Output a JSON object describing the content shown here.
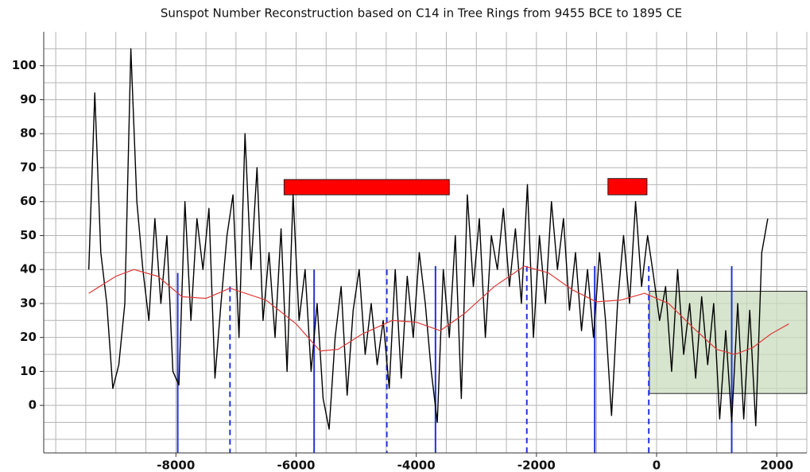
{
  "chart_data": {
    "type": "line",
    "title": "Sunspot Number Reconstruction based on C14 in Tree Rings from 9455 BCE to 1895 CE",
    "xlim": [
      -10200,
      2500
    ],
    "ylim": [
      -14,
      110
    ],
    "xticks": [
      -8000,
      -6000,
      -4000,
      -2000,
      0,
      2000
    ],
    "yticks": [
      0,
      10,
      20,
      30,
      40,
      50,
      60,
      70,
      80,
      90,
      100
    ],
    "x_minor_ticks": [
      -10000,
      -9500,
      -9000,
      -8500,
      -8000,
      -7500,
      -7000,
      -6500,
      -6000,
      -5500,
      -5000,
      -4500,
      -4000,
      -3500,
      -3000,
      -2500,
      -2000,
      -1500,
      -1000,
      -500,
      0,
      500,
      1000,
      1500,
      2000,
      2500
    ],
    "y_minor_ticks": [
      -10,
      -5,
      0,
      5,
      10,
      15,
      20,
      25,
      30,
      35,
      40,
      45,
      50,
      55,
      60,
      65,
      70,
      75,
      80,
      85,
      90,
      95,
      100,
      105
    ],
    "grid": true,
    "series": [
      {
        "color": "#000000",
        "width": 1.4,
        "x": [
          -9450,
          -9350,
          -9250,
          -9150,
          -9050,
          -8950,
          -8850,
          -8750,
          -8650,
          -8550,
          -8450,
          -8350,
          -8250,
          -8150,
          -8050,
          -7950,
          -7850,
          -7750,
          -7650,
          -7550,
          -7450,
          -7350,
          -7250,
          -7150,
          -7050,
          -6950,
          -6850,
          -6750,
          -6650,
          -6550,
          -6450,
          -6350,
          -6250,
          -6150,
          -6050,
          -5950,
          -5850,
          -5750,
          -5650,
          -5550,
          -5450,
          -5350,
          -5250,
          -5150,
          -5050,
          -4950,
          -4850,
          -4750,
          -4650,
          -4550,
          -4450,
          -4350,
          -4250,
          -4150,
          -4050,
          -3950,
          -3850,
          -3750,
          -3650,
          -3550,
          -3450,
          -3350,
          -3250,
          -3150,
          -3050,
          -2950,
          -2850,
          -2750,
          -2650,
          -2550,
          -2450,
          -2350,
          -2250,
          -2150,
          -2050,
          -1950,
          -1850,
          -1750,
          -1650,
          -1550,
          -1450,
          -1350,
          -1250,
          -1150,
          -1050,
          -950,
          -850,
          -750,
          -650,
          -550,
          -450,
          -350,
          -250,
          -150,
          -50,
          50,
          150,
          250,
          350,
          450,
          550,
          650,
          750,
          850,
          950,
          1050,
          1150,
          1250,
          1350,
          1450,
          1550,
          1650,
          1750,
          1850
        ],
        "values": [
          40,
          92,
          45,
          30,
          5,
          12,
          30,
          105,
          60,
          40,
          25,
          55,
          30,
          50,
          10,
          6,
          60,
          25,
          55,
          40,
          58,
          8,
          30,
          50,
          62,
          20,
          80,
          40,
          70,
          25,
          45,
          20,
          52,
          10,
          62,
          25,
          40,
          10,
          30,
          2,
          -7,
          20,
          35,
          3,
          28,
          40,
          15,
          30,
          12,
          25,
          5,
          40,
          8,
          38,
          20,
          45,
          30,
          10,
          -5,
          40,
          20,
          50,
          2,
          62,
          35,
          55,
          20,
          50,
          40,
          58,
          35,
          52,
          30,
          65,
          20,
          50,
          30,
          60,
          40,
          55,
          28,
          45,
          22,
          40,
          20,
          45,
          25,
          -3,
          30,
          50,
          30,
          60,
          35,
          50,
          38,
          25,
          35,
          10,
          40,
          15,
          30,
          8,
          32,
          12,
          30,
          -4,
          22,
          -5,
          30,
          -4,
          28,
          -6,
          45,
          55
        ]
      },
      {
        "color": "#e03a3a",
        "width": 1.2,
        "x": [
          -9450,
          -9000,
          -8700,
          -8300,
          -7900,
          -7500,
          -7100,
          -6500,
          -6000,
          -5600,
          -5300,
          -4900,
          -4400,
          -4000,
          -3600,
          -3200,
          -2700,
          -2200,
          -1800,
          -1400,
          -1000,
          -600,
          -200,
          200,
          600,
          1000,
          1300,
          1600,
          1900,
          2200
        ],
        "values": [
          33,
          38,
          40,
          38,
          32,
          31.5,
          34.5,
          31,
          24,
          16,
          16.5,
          21,
          25,
          24.5,
          22,
          27,
          35,
          41,
          39,
          34,
          30.5,
          31,
          33,
          30,
          23,
          16.5,
          15,
          17,
          21,
          24
        ]
      }
    ],
    "vlines": [
      {
        "x": -7970,
        "top": 39,
        "dashed": false,
        "color": "#2233dd"
      },
      {
        "x": -7100,
        "top": 35,
        "dashed": true,
        "color": "#2233dd"
      },
      {
        "x": -5700,
        "top": 40,
        "dashed": false,
        "color": "#2233dd"
      },
      {
        "x": -4490,
        "top": 40,
        "dashed": true,
        "color": "#2233dd"
      },
      {
        "x": -3680,
        "top": 41,
        "dashed": false,
        "color": "#2233dd"
      },
      {
        "x": -2160,
        "top": 41,
        "dashed": true,
        "color": "#2233dd"
      },
      {
        "x": -1030,
        "top": 41,
        "dashed": false,
        "color": "#2233dd"
      },
      {
        "x": -130,
        "top": 41,
        "dashed": true,
        "color": "#2233dd"
      },
      {
        "x": 1250,
        "top": 41,
        "dashed": false,
        "color": "#2233dd"
      }
    ],
    "shapes": [
      {
        "x": [
          -6200,
          -3450
        ],
        "y": [
          62,
          66.5
        ],
        "color": "#ff0000"
      },
      {
        "x": [
          -810,
          -160
        ],
        "y": [
          62,
          66.8
        ],
        "color": "#ff0000"
      },
      {
        "x": [
          -120,
          2500
        ],
        "y": [
          3.5,
          33.6
        ],
        "color": "#c9dcbf"
      }
    ]
  }
}
